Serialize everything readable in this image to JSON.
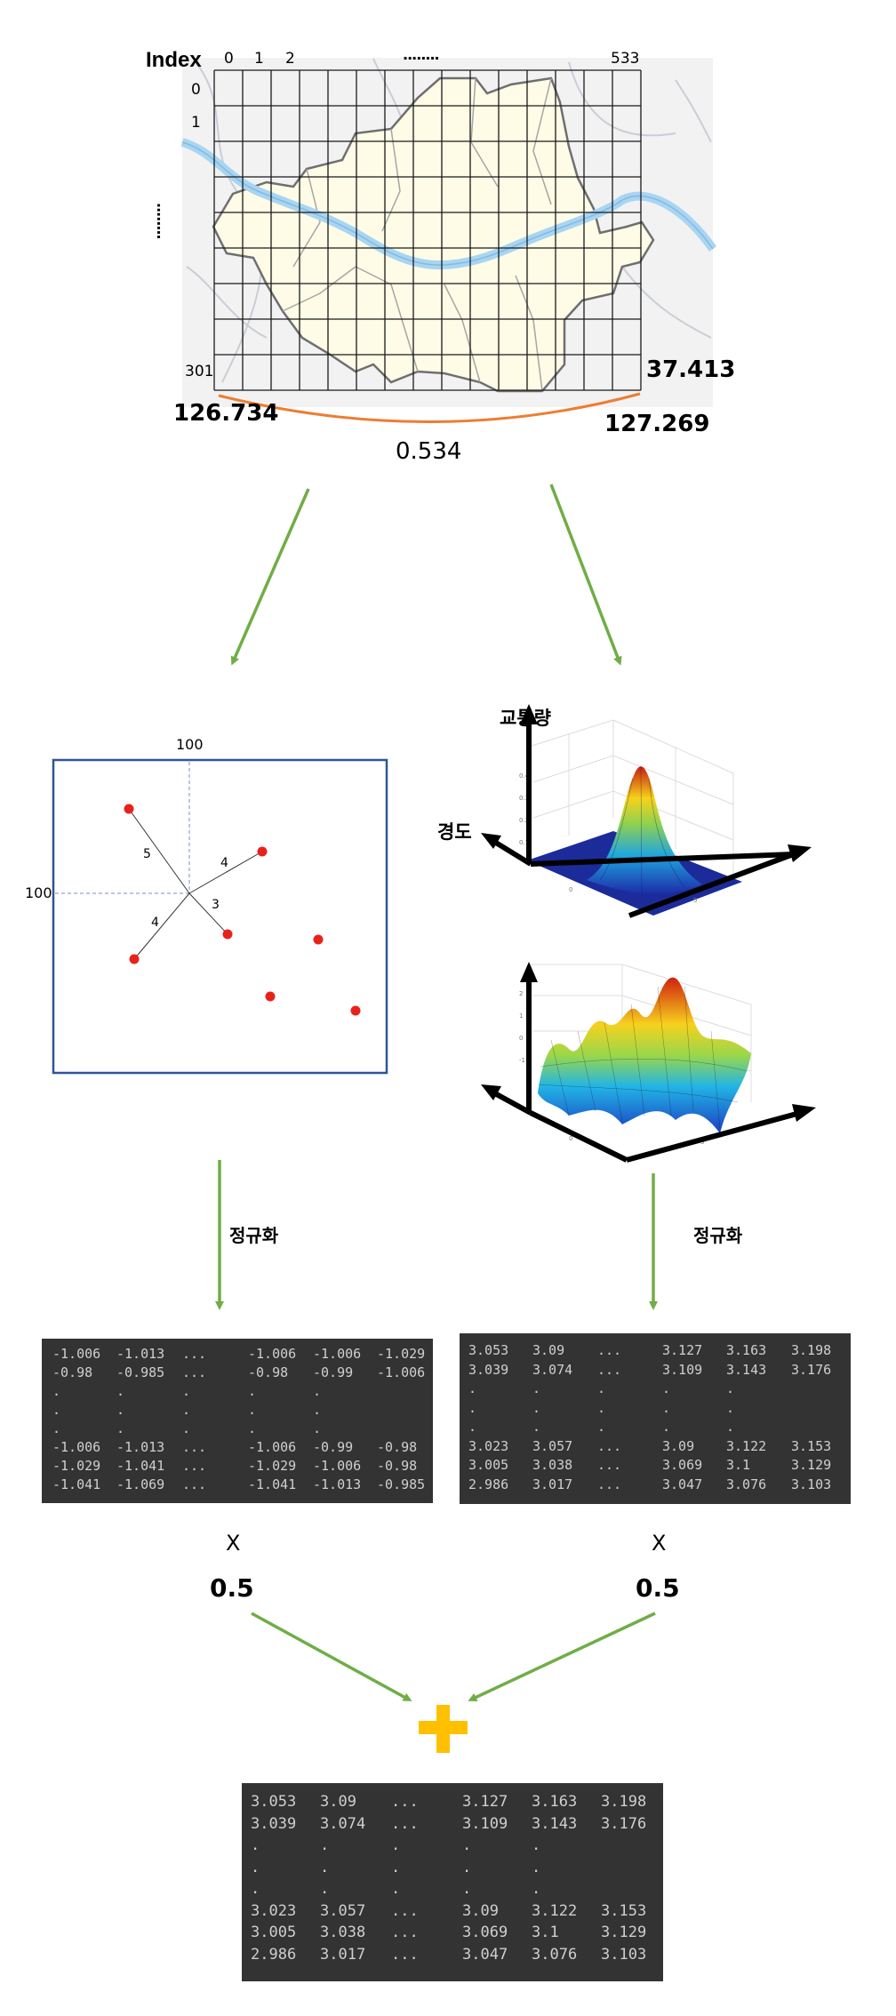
{
  "map": {
    "index_label": "Index",
    "col_indices": [
      "0",
      "1",
      "2",
      "........",
      "533"
    ],
    "row_indices": [
      "0",
      "1",
      "301"
    ],
    "row_ellipsis": "........",
    "lon_left": "126.734",
    "lon_right": "127.269",
    "lat": "37.413",
    "span": "0.534"
  },
  "distance_panel": {
    "top_label": "100",
    "left_label": "100",
    "distances": [
      "5",
      "4",
      "3",
      "4"
    ]
  },
  "surface_panel": {
    "z_axis_label": "교통량",
    "y_axis_label": "경도"
  },
  "normalize_label_left": "정규화",
  "normalize_label_right": "정규화",
  "matrix_left": {
    "rows": [
      [
        "-1.006",
        "-1.013",
        "...",
        "-1.006",
        "-1.006",
        "-1.029"
      ],
      [
        "-0.98",
        "-0.985",
        "...",
        "-0.98",
        "-0.99",
        "-1.006"
      ],
      [
        ".",
        ".",
        ".",
        ".",
        ".",
        ""
      ],
      [
        ".",
        ".",
        ".",
        ".",
        ".",
        ""
      ],
      [
        ".",
        ".",
        ".",
        ".",
        ".",
        ""
      ],
      [
        "-1.006",
        "-1.013",
        "...",
        "-1.006",
        "-0.99",
        "-0.98"
      ],
      [
        "-1.029",
        "-1.041",
        "...",
        "-1.029",
        "-1.006",
        "-0.98"
      ],
      [
        "-1.041",
        "-1.069",
        "...",
        "-1.041",
        "-1.013",
        "-0.985"
      ]
    ]
  },
  "matrix_right": {
    "rows": [
      [
        "3.053",
        "3.09",
        "...",
        "3.127",
        "3.163",
        "3.198"
      ],
      [
        "3.039",
        "3.074",
        "...",
        "3.109",
        "3.143",
        "3.176"
      ],
      [
        ".",
        ".",
        ".",
        ".",
        ".",
        ""
      ],
      [
        ".",
        ".",
        ".",
        ".",
        ".",
        ""
      ],
      [
        ".",
        ".",
        ".",
        ".",
        ".",
        ""
      ],
      [
        "3.023",
        "3.057",
        "...",
        "3.09",
        "3.122",
        "3.153"
      ],
      [
        "3.005",
        "3.038",
        "...",
        "3.069",
        "3.1",
        "3.129"
      ],
      [
        "2.986",
        "3.017",
        "...",
        "3.047",
        "3.076",
        "3.103"
      ]
    ]
  },
  "multiply_left": "X",
  "multiply_right": "X",
  "weight_left": "0.5",
  "weight_right": "0.5",
  "matrix_result": {
    "rows": [
      [
        "3.053",
        "3.09",
        "...",
        "3.127",
        "3.163",
        "3.198"
      ],
      [
        "3.039",
        "3.074",
        "...",
        "3.109",
        "3.143",
        "3.176"
      ],
      [
        ".",
        ".",
        ".",
        ".",
        ".",
        ""
      ],
      [
        ".",
        ".",
        ".",
        ".",
        ".",
        ""
      ],
      [
        ".",
        ".",
        ".",
        ".",
        ".",
        ""
      ],
      [
        "3.023",
        "3.057",
        "...",
        "3.09",
        "3.122",
        "3.153"
      ],
      [
        "3.005",
        "3.038",
        "...",
        "3.069",
        "3.1",
        "3.129"
      ],
      [
        "2.986",
        "3.017",
        "...",
        "3.047",
        "3.076",
        "3.103"
      ]
    ]
  },
  "colors": {
    "arrow_green": "#70ad47",
    "plus_yellow": "#ffc000",
    "bracket_orange": "#ed7d31",
    "panel_border": "#2f5597",
    "point_red": "#e8221b",
    "matrix_bg": "#333333"
  }
}
